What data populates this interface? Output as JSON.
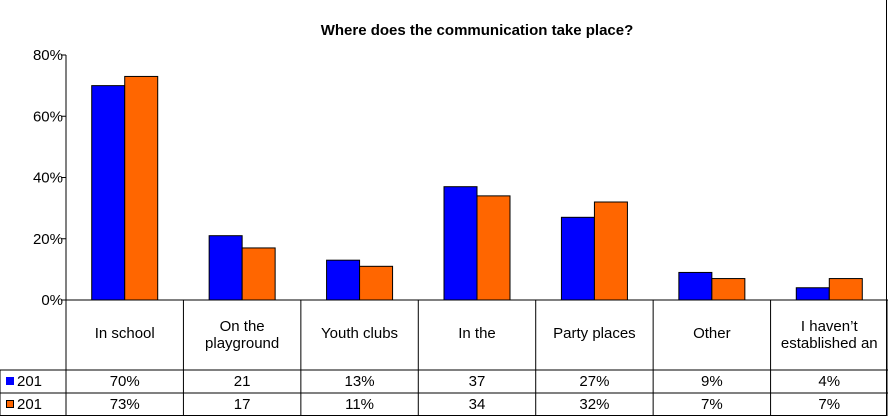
{
  "chart_data": {
    "type": "bar",
    "title": "Where does the communication take place?",
    "ylim": [
      0,
      80
    ],
    "yticks": [
      "0%",
      "20%",
      "40%",
      "60%",
      "80%"
    ],
    "categories": [
      "In school",
      "On the playground",
      "Youth clubs",
      "In the",
      "Party places",
      "Other",
      "I haven’t established an"
    ],
    "series": [
      {
        "name": "201",
        "color": "#0000ff",
        "values": [
          70,
          21,
          13,
          37,
          27,
          9,
          4
        ],
        "labels": [
          "70%",
          "21",
          "13%",
          "37",
          "27%",
          "9%",
          "4%"
        ]
      },
      {
        "name": "201",
        "color": "#ff6600",
        "values": [
          73,
          17,
          11,
          34,
          32,
          7,
          7
        ],
        "labels": [
          "73%",
          "17",
          "11%",
          "34",
          "32%",
          "7%",
          "7%"
        ]
      }
    ]
  }
}
